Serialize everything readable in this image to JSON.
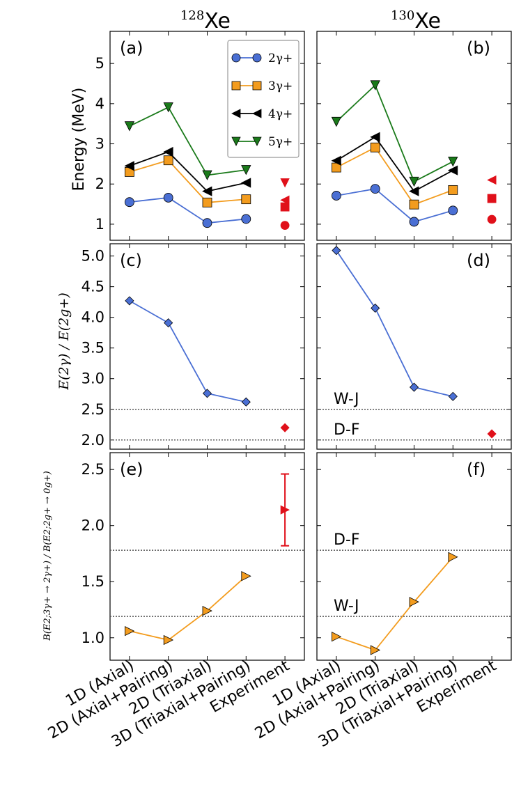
{
  "colors": {
    "blue": "#4a6fd4",
    "orange": "#f39c1e",
    "black": "#000000",
    "green": "#1a7a1a",
    "red": "#e0101a",
    "ref_line": "#555555"
  },
  "titles": [
    {
      "mass": "128",
      "element": "Xe"
    },
    {
      "mass": "130",
      "element": "Xe"
    }
  ],
  "panel_labels": [
    "(a)",
    "(b)",
    "(c)",
    "(d)",
    "(e)",
    "(f)"
  ],
  "axis_labels": {
    "row1": "Energy (MeV)",
    "row2": "E(2γ) / E(2g+)",
    "row3": "B(E2;3γ+ → 2γ+) / B(E2;2g+ → 0g+)"
  },
  "x_categories": [
    "1D (Axial)",
    "2D (Axial+Pairing)",
    "2D (Triaxial)",
    "3D (Triaxial+Pairing)",
    "Experiment"
  ],
  "ref_lines": {
    "wj": "W-J",
    "df": "D-F"
  },
  "legend": [
    "2γ+",
    "3γ+",
    "4γ+",
    "5γ+"
  ],
  "chart_data": [
    {
      "panel": "(a)",
      "nucleus": "128Xe",
      "type": "line",
      "ylabel": "Energy (MeV)",
      "ylim": [
        0.6,
        5.8
      ],
      "yticks": [
        "1",
        "2",
        "3",
        "4",
        "5"
      ],
      "series": [
        {
          "name": "2γ+",
          "values": [
            1.55,
            1.66,
            1.03,
            1.13
          ],
          "experiment": 0.97
        },
        {
          "name": "3γ+",
          "values": [
            2.3,
            2.59,
            1.54,
            1.62
          ],
          "experiment": 1.43
        },
        {
          "name": "4γ+",
          "values": [
            2.45,
            2.8,
            1.82,
            2.03
          ],
          "experiment": 1.6
        },
        {
          "name": "5γ+",
          "values": [
            3.44,
            3.91,
            2.22,
            2.35
          ],
          "experiment": 2.03
        }
      ]
    },
    {
      "panel": "(b)",
      "nucleus": "130Xe",
      "type": "line",
      "ylim": [
        0.6,
        5.8
      ],
      "series": [
        {
          "name": "2γ+",
          "values": [
            1.71,
            1.88,
            1.06,
            1.34
          ],
          "experiment": 1.12
        },
        {
          "name": "3γ+",
          "values": [
            2.41,
            2.91,
            1.49,
            1.85
          ],
          "experiment": 1.64
        },
        {
          "name": "4γ+",
          "values": [
            2.58,
            3.17,
            1.82,
            2.34
          ],
          "experiment": 2.1
        },
        {
          "name": "5γ+",
          "values": [
            3.55,
            4.46,
            2.06,
            2.56
          ],
          "experiment": null
        }
      ]
    },
    {
      "panel": "(c)",
      "nucleus": "128Xe",
      "type": "line",
      "ylim": [
        1.85,
        5.2
      ],
      "yticks": [
        "2.0",
        "2.5",
        "3.0",
        "3.5",
        "4.0",
        "4.5",
        "5.0"
      ],
      "series": [
        {
          "name": "E(2γ)/E(2g+)",
          "values": [
            4.27,
            3.91,
            2.76,
            2.62
          ],
          "experiment": 2.2
        }
      ],
      "ref_lines": {
        "W-J": 2.5,
        "D-F": 2.0
      }
    },
    {
      "panel": "(d)",
      "nucleus": "130Xe",
      "type": "line",
      "ylim": [
        1.85,
        5.2
      ],
      "series": [
        {
          "name": "E(2γ)/E(2g+)",
          "values": [
            5.09,
            4.15,
            2.86,
            2.71
          ],
          "experiment": 2.1
        }
      ],
      "ref_lines": {
        "W-J": 2.5,
        "D-F": 2.0
      }
    },
    {
      "panel": "(e)",
      "nucleus": "128Xe",
      "type": "line",
      "ylim": [
        0.8,
        2.65
      ],
      "yticks": [
        "1.0",
        "1.5",
        "2.0",
        "2.5"
      ],
      "series": [
        {
          "name": "B(E2) ratio",
          "values": [
            1.06,
            0.98,
            1.24,
            1.55
          ],
          "experiment": 2.14,
          "experiment_error": [
            1.82,
            2.46
          ]
        }
      ],
      "ref_lines": {
        "W-J": 1.19,
        "D-F": 1.78
      }
    },
    {
      "panel": "(f)",
      "nucleus": "130Xe",
      "type": "line",
      "ylim": [
        0.8,
        2.65
      ],
      "series": [
        {
          "name": "B(E2) ratio",
          "values": [
            1.01,
            0.89,
            1.32,
            1.72
          ],
          "experiment": null
        }
      ],
      "ref_lines": {
        "W-J": 1.19,
        "D-F": 1.78
      }
    }
  ]
}
